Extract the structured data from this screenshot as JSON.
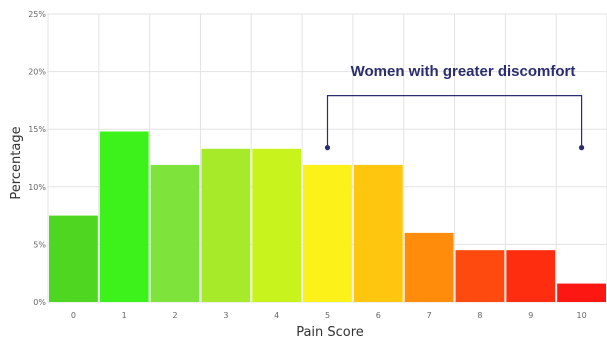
{
  "chart_data": {
    "type": "bar",
    "xlabel": "Pain Score",
    "ylabel": "Percentage",
    "categories": [
      "0",
      "1",
      "2",
      "3",
      "4",
      "5",
      "6",
      "7",
      "8",
      "9",
      "10"
    ],
    "values": [
      7.5,
      14.8,
      11.9,
      13.3,
      13.3,
      11.9,
      11.9,
      6.0,
      4.5,
      4.5,
      1.6
    ],
    "bar_colors": [
      "#4ed621",
      "#3df11a",
      "#7ee43b",
      "#a6ea2a",
      "#c9f31c",
      "#fdf11a",
      "#ffc610",
      "#ff8c0a",
      "#ff4a0f",
      "#ff2d0f",
      "#fd1713"
    ],
    "ylim": [
      0,
      25
    ],
    "yticks": [
      0,
      5,
      10,
      15,
      20,
      25
    ],
    "ytick_labels": [
      "0%",
      "5%",
      "10%",
      "15%",
      "20%",
      "25%"
    ],
    "grid": true,
    "annotation": {
      "text": "Women with greater discomfort",
      "from_category": "5",
      "to_category": "10",
      "color": "#2b2d6e"
    }
  }
}
